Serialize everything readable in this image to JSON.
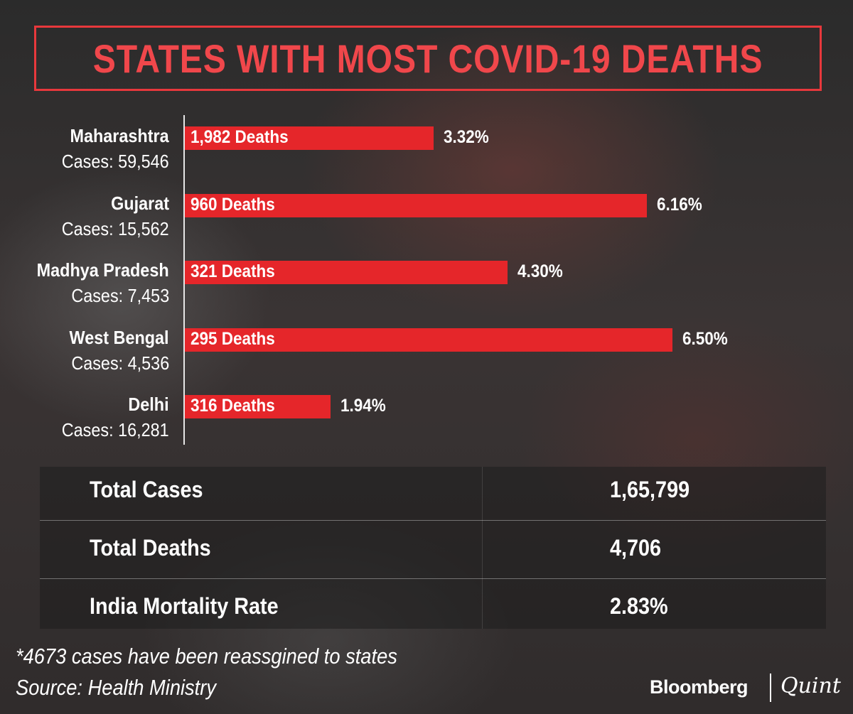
{
  "chart_data": {
    "type": "bar",
    "orientation": "horizontal",
    "title": "STATES WITH MOST COVID-19 DEATHS",
    "categories": [
      "Maharashtra",
      "Gujarat",
      "Madhya Pradesh",
      "West Bengal",
      "Delhi"
    ],
    "cases_labels": [
      "Cases: 59,546",
      "Cases: 15,562",
      "Cases: 7,453",
      "Cases: 4,536",
      "Cases: 16,281"
    ],
    "bar_labels": [
      "1,982 Deaths",
      "960 Deaths",
      "321 Deaths",
      "295 Deaths",
      "316 Deaths"
    ],
    "value_labels": [
      "3.32%",
      "6.16%",
      "4.30%",
      "6.50%",
      "1.94%"
    ],
    "values": [
      3.32,
      6.16,
      4.3,
      6.5,
      1.94
    ],
    "xlim": [
      0,
      6.5
    ],
    "colors": {
      "bar": "#e5262a",
      "title": "#f0474b"
    }
  },
  "summary": {
    "rows": [
      {
        "label": "Total Cases",
        "value": "1,65,799"
      },
      {
        "label": "Total Deaths",
        "value": "4,706"
      },
      {
        "label": "India Mortality Rate",
        "value": "2.83%"
      }
    ]
  },
  "footer": {
    "note": "*4673 cases have been reassgined to states",
    "source": "Source: Health Ministry",
    "brand_left": "Bloomberg",
    "brand_right": "Quint"
  }
}
